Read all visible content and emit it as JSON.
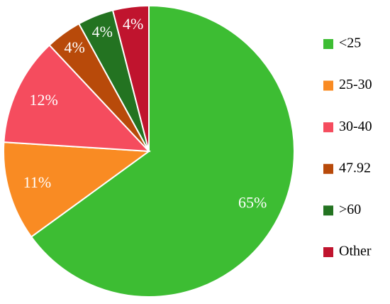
{
  "chart_data": {
    "type": "pie",
    "categories": [
      "<25",
      "25-30",
      "30-40",
      "47.92",
      ">60",
      "Other"
    ],
    "values": [
      65,
      11,
      12,
      4,
      4,
      4
    ],
    "value_labels": [
      "65%",
      "11%",
      "12%",
      "4%",
      "4%",
      "4%"
    ],
    "colors": [
      "#3dbd33",
      "#f98b23",
      "#f54c5e",
      "#b84a0a",
      "#237321",
      "#c0142e"
    ],
    "start_angle": "top",
    "direction": "clockwise",
    "legend": "right"
  }
}
